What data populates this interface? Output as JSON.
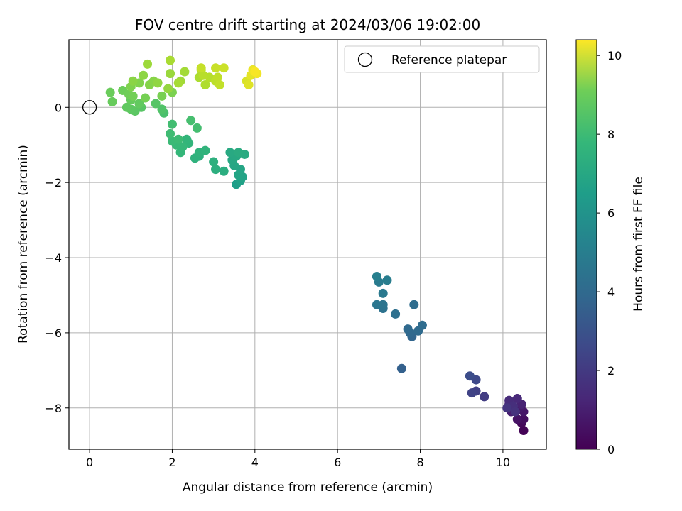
{
  "chart_data": {
    "type": "scatter",
    "title": "FOV centre drift starting at 2024/03/06 19:02:00",
    "xlabel": "Angular distance from reference (arcmin)",
    "ylabel": "Rotation from reference (arcmin)",
    "xlim": [
      -0.5,
      11.05
    ],
    "ylim": [
      -9.1,
      1.8
    ],
    "xticks": [
      0,
      2,
      4,
      6,
      8,
      10
    ],
    "yticks": [
      -8,
      -6,
      -4,
      -2,
      0
    ],
    "xtick_labels": [
      "0",
      "2",
      "4",
      "6",
      "8",
      "10"
    ],
    "ytick_labels": [
      "−8",
      "−6",
      "−4",
      "−2",
      "0"
    ],
    "grid": true,
    "legend": {
      "placement": "top-right",
      "entries": [
        "Reference platepar"
      ]
    },
    "reference_point": {
      "x": 0,
      "y": 0,
      "label": "Reference platepar",
      "marker": "open-circle"
    },
    "colorbar": {
      "label": "Hours from first FF file",
      "colormap": "viridis",
      "range": [
        0,
        10.4
      ],
      "ticks": [
        0,
        2,
        4,
        6,
        8,
        10
      ],
      "tick_labels": [
        "0",
        "2",
        "4",
        "6",
        "8",
        "10"
      ]
    },
    "points": [
      {
        "x": 10.5,
        "y": -8.6,
        "t": 0.05
      },
      {
        "x": 10.45,
        "y": -8.4,
        "t": 0.2
      },
      {
        "x": 10.5,
        "y": -8.3,
        "t": 0.35
      },
      {
        "x": 10.35,
        "y": -8.3,
        "t": 0.5
      },
      {
        "x": 10.5,
        "y": -8.1,
        "t": 0.6
      },
      {
        "x": 10.4,
        "y": -8.0,
        "t": 0.7
      },
      {
        "x": 10.3,
        "y": -8.0,
        "t": 0.8
      },
      {
        "x": 10.2,
        "y": -8.1,
        "t": 0.9
      },
      {
        "x": 10.45,
        "y": -7.9,
        "t": 1.0
      },
      {
        "x": 10.15,
        "y": -7.9,
        "t": 1.1
      },
      {
        "x": 10.35,
        "y": -7.75,
        "t": 1.2
      },
      {
        "x": 10.15,
        "y": -7.8,
        "t": 1.3
      },
      {
        "x": 10.25,
        "y": -7.95,
        "t": 1.4
      },
      {
        "x": 10.3,
        "y": -8.1,
        "t": 1.5
      },
      {
        "x": 10.1,
        "y": -8.0,
        "t": 1.6
      },
      {
        "x": 9.55,
        "y": -7.7,
        "t": 1.85
      },
      {
        "x": 9.35,
        "y": -7.55,
        "t": 2.0
      },
      {
        "x": 9.25,
        "y": -7.6,
        "t": 2.1
      },
      {
        "x": 9.35,
        "y": -7.25,
        "t": 2.3
      },
      {
        "x": 9.2,
        "y": -7.15,
        "t": 2.45
      },
      {
        "x": 7.55,
        "y": -6.95,
        "t": 3.2
      },
      {
        "x": 7.8,
        "y": -6.1,
        "t": 3.4
      },
      {
        "x": 7.75,
        "y": -6.0,
        "t": 3.5
      },
      {
        "x": 7.7,
        "y": -5.9,
        "t": 3.55
      },
      {
        "x": 7.95,
        "y": -5.95,
        "t": 3.6
      },
      {
        "x": 8.05,
        "y": -5.8,
        "t": 3.65
      },
      {
        "x": 7.85,
        "y": -5.25,
        "t": 3.7
      },
      {
        "x": 7.4,
        "y": -5.5,
        "t": 3.8
      },
      {
        "x": 7.1,
        "y": -5.35,
        "t": 3.9
      },
      {
        "x": 7.1,
        "y": -5.25,
        "t": 4.0
      },
      {
        "x": 6.95,
        "y": -5.25,
        "t": 4.1
      },
      {
        "x": 7.1,
        "y": -4.95,
        "t": 4.2
      },
      {
        "x": 7.0,
        "y": -4.65,
        "t": 4.3
      },
      {
        "x": 7.2,
        "y": -4.6,
        "t": 4.4
      },
      {
        "x": 6.95,
        "y": -4.5,
        "t": 4.5
      },
      {
        "x": 3.55,
        "y": -2.05,
        "t": 5.8
      },
      {
        "x": 3.65,
        "y": -1.95,
        "t": 5.9
      },
      {
        "x": 3.7,
        "y": -1.85,
        "t": 6.0
      },
      {
        "x": 3.6,
        "y": -1.8,
        "t": 6.05
      },
      {
        "x": 3.65,
        "y": -1.65,
        "t": 6.1
      },
      {
        "x": 3.5,
        "y": -1.55,
        "t": 6.15
      },
      {
        "x": 3.45,
        "y": -1.4,
        "t": 6.2
      },
      {
        "x": 3.55,
        "y": -1.3,
        "t": 6.25
      },
      {
        "x": 3.4,
        "y": -1.2,
        "t": 6.3
      },
      {
        "x": 3.75,
        "y": -1.25,
        "t": 6.35
      },
      {
        "x": 3.6,
        "y": -1.2,
        "t": 6.4
      },
      {
        "x": 3.25,
        "y": -1.7,
        "t": 6.45
      },
      {
        "x": 3.05,
        "y": -1.65,
        "t": 6.5
      },
      {
        "x": 3.0,
        "y": -1.45,
        "t": 6.55
      },
      {
        "x": 2.65,
        "y": -1.3,
        "t": 6.6
      },
      {
        "x": 2.55,
        "y": -1.35,
        "t": 6.65
      },
      {
        "x": 2.65,
        "y": -1.2,
        "t": 6.7
      },
      {
        "x": 2.8,
        "y": -1.15,
        "t": 6.75
      },
      {
        "x": 2.4,
        "y": -0.95,
        "t": 6.8
      },
      {
        "x": 2.35,
        "y": -0.85,
        "t": 6.85
      },
      {
        "x": 2.2,
        "y": -1.2,
        "t": 6.9
      },
      {
        "x": 2.25,
        "y": -1.05,
        "t": 6.95
      },
      {
        "x": 2.1,
        "y": -1.0,
        "t": 7.0
      },
      {
        "x": 2.0,
        "y": -0.9,
        "t": 7.05
      },
      {
        "x": 2.15,
        "y": -0.85,
        "t": 7.1
      },
      {
        "x": 1.95,
        "y": -0.7,
        "t": 7.15
      },
      {
        "x": 2.0,
        "y": -0.45,
        "t": 7.2
      },
      {
        "x": 2.6,
        "y": -0.55,
        "t": 7.25
      },
      {
        "x": 2.45,
        "y": -0.35,
        "t": 7.3
      },
      {
        "x": 1.8,
        "y": -0.15,
        "t": 7.35
      },
      {
        "x": 1.75,
        "y": -0.05,
        "t": 7.5
      },
      {
        "x": 1.6,
        "y": 0.1,
        "t": 7.6
      },
      {
        "x": 1.25,
        "y": 0.0,
        "t": 7.65
      },
      {
        "x": 1.1,
        "y": -0.1,
        "t": 7.7
      },
      {
        "x": 1.0,
        "y": -0.05,
        "t": 7.75
      },
      {
        "x": 0.9,
        "y": 0.0,
        "t": 7.8
      },
      {
        "x": 1.2,
        "y": 0.1,
        "t": 7.85
      },
      {
        "x": 1.0,
        "y": 0.2,
        "t": 7.9
      },
      {
        "x": 0.55,
        "y": 0.15,
        "t": 7.95
      },
      {
        "x": 0.5,
        "y": 0.4,
        "t": 8.0
      },
      {
        "x": 0.8,
        "y": 0.45,
        "t": 8.05
      },
      {
        "x": 0.95,
        "y": 0.35,
        "t": 8.1
      },
      {
        "x": 1.05,
        "y": 0.3,
        "t": 8.15
      },
      {
        "x": 1.35,
        "y": 0.25,
        "t": 8.2
      },
      {
        "x": 1.75,
        "y": 0.3,
        "t": 8.25
      },
      {
        "x": 2.0,
        "y": 0.4,
        "t": 8.3
      },
      {
        "x": 1.0,
        "y": 0.55,
        "t": 8.35
      },
      {
        "x": 1.2,
        "y": 0.65,
        "t": 8.4
      },
      {
        "x": 1.45,
        "y": 0.6,
        "t": 8.45
      },
      {
        "x": 1.55,
        "y": 0.7,
        "t": 8.5
      },
      {
        "x": 1.05,
        "y": 0.7,
        "t": 8.55
      },
      {
        "x": 1.3,
        "y": 0.85,
        "t": 8.6
      },
      {
        "x": 1.65,
        "y": 0.65,
        "t": 8.65
      },
      {
        "x": 1.9,
        "y": 0.5,
        "t": 8.7
      },
      {
        "x": 1.95,
        "y": 0.9,
        "t": 8.8
      },
      {
        "x": 1.4,
        "y": 1.15,
        "t": 8.85
      },
      {
        "x": 2.2,
        "y": 0.7,
        "t": 8.9
      },
      {
        "x": 2.3,
        "y": 0.95,
        "t": 8.95
      },
      {
        "x": 2.15,
        "y": 0.65,
        "t": 9.0
      },
      {
        "x": 1.95,
        "y": 1.25,
        "t": 9.05
      },
      {
        "x": 2.65,
        "y": 0.8,
        "t": 9.1
      },
      {
        "x": 2.8,
        "y": 0.6,
        "t": 9.15
      },
      {
        "x": 2.7,
        "y": 1.0,
        "t": 9.2
      },
      {
        "x": 2.9,
        "y": 0.8,
        "t": 9.25
      },
      {
        "x": 2.75,
        "y": 0.85,
        "t": 9.3
      },
      {
        "x": 3.05,
        "y": 0.7,
        "t": 9.35
      },
      {
        "x": 3.1,
        "y": 0.8,
        "t": 9.4
      },
      {
        "x": 3.15,
        "y": 0.6,
        "t": 9.45
      },
      {
        "x": 2.7,
        "y": 1.05,
        "t": 9.5
      },
      {
        "x": 3.05,
        "y": 1.05,
        "t": 9.55
      },
      {
        "x": 3.25,
        "y": 1.05,
        "t": 9.6
      },
      {
        "x": 3.8,
        "y": 0.7,
        "t": 9.8
      },
      {
        "x": 3.85,
        "y": 0.6,
        "t": 9.9
      },
      {
        "x": 3.9,
        "y": 0.85,
        "t": 10.0
      },
      {
        "x": 3.95,
        "y": 1.0,
        "t": 10.1
      },
      {
        "x": 4.05,
        "y": 0.9,
        "t": 10.2
      },
      {
        "x": 4.0,
        "y": 0.95,
        "t": 10.3
      }
    ]
  }
}
